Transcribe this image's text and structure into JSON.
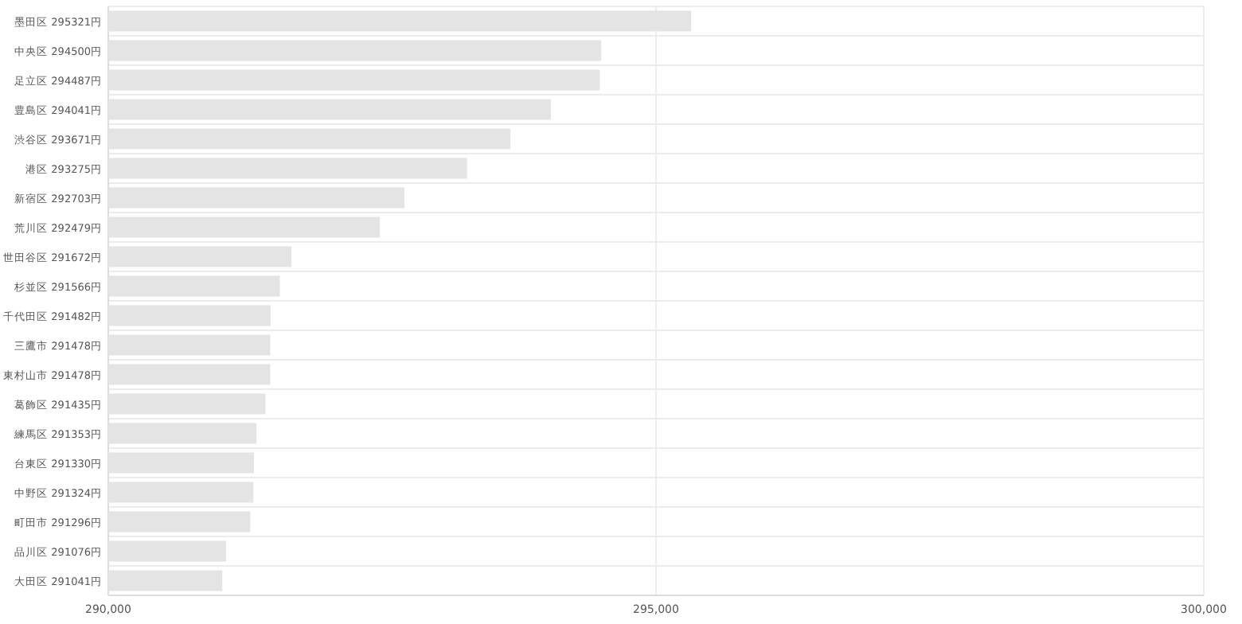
{
  "chart_data": {
    "type": "bar",
    "orientation": "horizontal",
    "categories": [
      "墨田区 295321円",
      "中央区 294500円",
      "足立区 294487円",
      "豊島区 294041円",
      "渋谷区 293671円",
      "港区 293275円",
      "新宿区 292703円",
      "荒川区 292479円",
      "世田谷区 291672円",
      "杉並区 291566円",
      "千代田区 291482円",
      "三鷹市 291478円",
      "東村山市 291478円",
      "葛飾区 291435円",
      "練馬区 291353円",
      "台東区 291330円",
      "中野区 291324円",
      "町田市 291296円",
      "品川区 291076円",
      "大田区 291041円"
    ],
    "values": [
      295321,
      294500,
      294487,
      294041,
      293671,
      293275,
      292703,
      292479,
      291672,
      291566,
      291482,
      291478,
      291478,
      291435,
      291353,
      291330,
      291324,
      291296,
      291076,
      291041
    ],
    "color": "#e4e4e4",
    "xlim": [
      290000,
      300000
    ],
    "xticks": [
      {
        "value": 290000,
        "label": "290,000"
      },
      {
        "value": 295000,
        "label": "295,000"
      },
      {
        "value": 300000,
        "label": "300,000"
      }
    ],
    "grid": true
  }
}
